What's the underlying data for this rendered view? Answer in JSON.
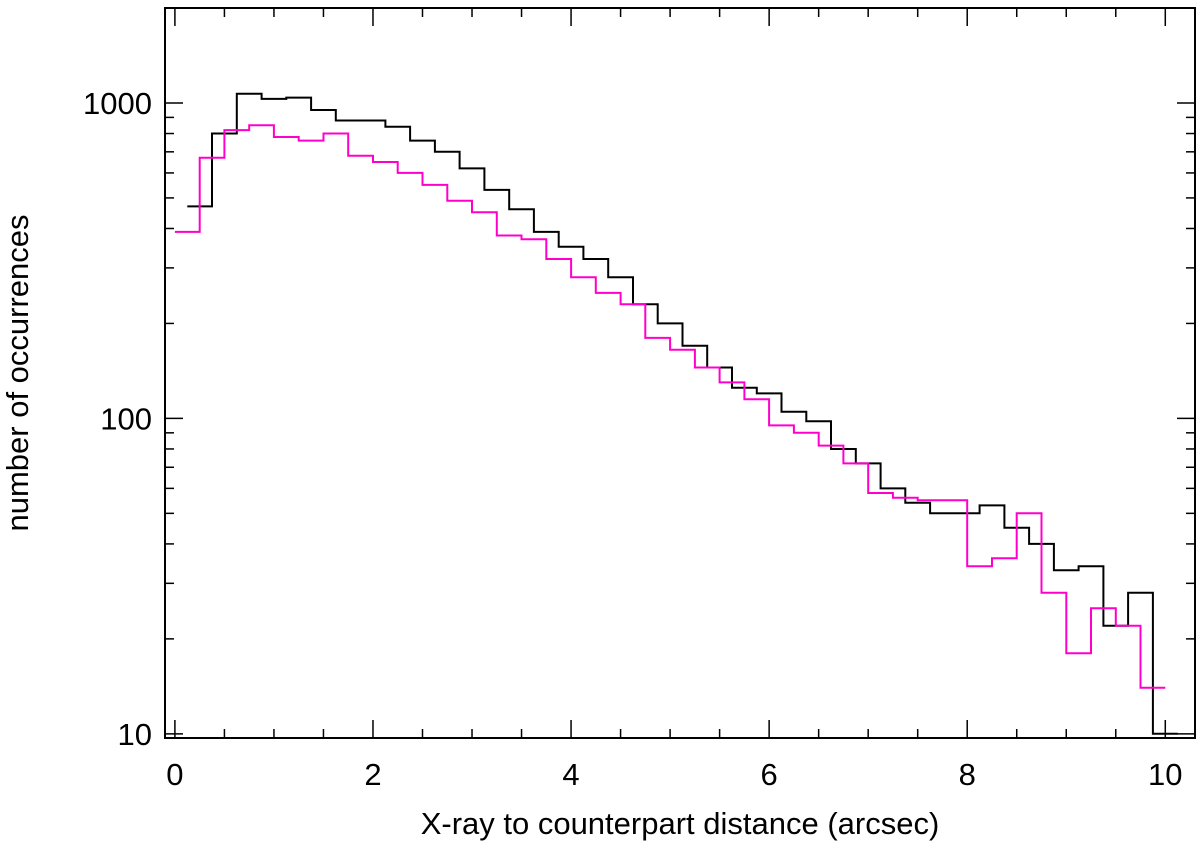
{
  "chart_data": {
    "type": "line",
    "step": true,
    "title": "",
    "xlabel": "X-ray to counterpart distance (arcsec)",
    "ylabel": "number of occurrences",
    "xlim": [
      -0.1,
      10.3
    ],
    "ylim": [
      9.7,
      2000
    ],
    "yscale": "log",
    "grid": false,
    "legend": "none",
    "x_ticks": [
      0,
      2,
      4,
      6,
      8,
      10
    ],
    "x_tick_labels": [
      "0",
      "2",
      "4",
      "6",
      "8",
      "10"
    ],
    "y_ticks": [
      10,
      100,
      1000
    ],
    "y_tick_labels": [
      "10",
      "100",
      "1000"
    ],
    "x_bin_edges": [
      0.125,
      0.25,
      0.5,
      0.75,
      1.0,
      1.25,
      1.5,
      1.75,
      2.0,
      2.25,
      2.5,
      2.75,
      3.0,
      3.25,
      3.5,
      3.75,
      4.0,
      4.25,
      4.5,
      4.75,
      5.0,
      5.25,
      5.5,
      5.75,
      6.0,
      6.25,
      6.5,
      6.75,
      7.0,
      7.25,
      7.5,
      7.75,
      8.0,
      8.25,
      8.5,
      8.75,
      9.0,
      9.25,
      9.5,
      9.75,
      9.875
    ],
    "series": [
      {
        "color": "#000000",
        "start_edge": 0.125,
        "values": [
          470,
          800,
          1070,
          1030,
          1040,
          950,
          880,
          880,
          840,
          760,
          700,
          620,
          530,
          460,
          390,
          350,
          320,
          280,
          230,
          200,
          170,
          145,
          125,
          120,
          105,
          98,
          80,
          72,
          60,
          54,
          50,
          50,
          53,
          45,
          40,
          33,
          34,
          22,
          28,
          10
        ]
      },
      {
        "color": "#ff00cc",
        "start_edge": 0.0,
        "values": [
          390,
          670,
          820,
          850,
          780,
          760,
          800,
          680,
          650,
          600,
          550,
          490,
          450,
          380,
          370,
          320,
          280,
          250,
          230,
          180,
          165,
          145,
          130,
          115,
          95,
          90,
          82,
          72,
          58,
          56,
          55,
          55,
          34,
          36,
          50,
          28,
          18,
          25,
          22,
          14
        ]
      }
    ]
  }
}
